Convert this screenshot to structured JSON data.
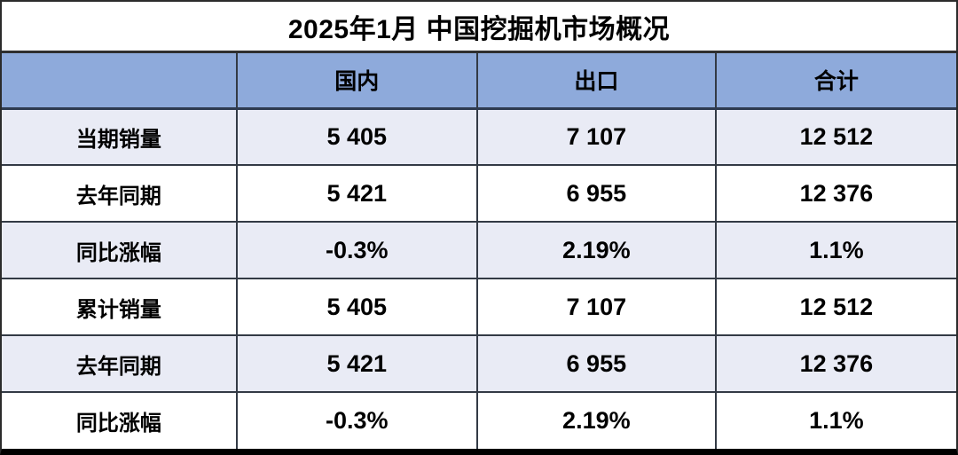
{
  "title": "2025年1月 中国挖掘机市场概况",
  "table": {
    "columns": [
      "",
      "国内",
      "出口",
      "合计"
    ],
    "rows": [
      {
        "label": "当期销量",
        "values": [
          "5 405",
          "7 107",
          "12 512"
        ]
      },
      {
        "label": "去年同期",
        "values": [
          "5 421",
          "6 955",
          "12 376"
        ]
      },
      {
        "label": "同比涨幅",
        "values": [
          "-0.3%",
          "2.19%",
          "1.1%"
        ]
      },
      {
        "label": "累计销量",
        "values": [
          "5 405",
          "7 107",
          "12 512"
        ]
      },
      {
        "label": "去年同期",
        "values": [
          "5 421",
          "6 955",
          "12 376"
        ]
      },
      {
        "label": "同比涨幅",
        "values": [
          "-0.3%",
          "2.19%",
          "1.1%"
        ]
      }
    ]
  },
  "colors": {
    "header_bg": "#8EAADB",
    "row_alt_bg": "#E9EBF5",
    "row_bg": "#FFFFFF",
    "border": "#333A45",
    "bottom_border": "#000000",
    "text": "#000000"
  },
  "chart_data": {
    "type": "table",
    "title": "2025年1月 中国挖掘机市场概况",
    "columns": [
      "国内",
      "出口",
      "合计"
    ],
    "rows": [
      {
        "label": "当期销量",
        "国内": 5405,
        "出口": 7107,
        "合计": 12512
      },
      {
        "label": "去年同期",
        "国内": 5421,
        "出口": 6955,
        "合计": 12376
      },
      {
        "label": "同比涨幅",
        "国内": "-0.3%",
        "出口": "2.19%",
        "合计": "1.1%"
      },
      {
        "label": "累计销量",
        "国内": 5405,
        "出口": 7107,
        "合计": 12512
      },
      {
        "label": "去年同期",
        "国内": 5421,
        "出口": 6955,
        "合计": 12376
      },
      {
        "label": "同比涨幅",
        "国内": "-0.3%",
        "出口": "2.19%",
        "合计": "1.1%"
      }
    ]
  }
}
